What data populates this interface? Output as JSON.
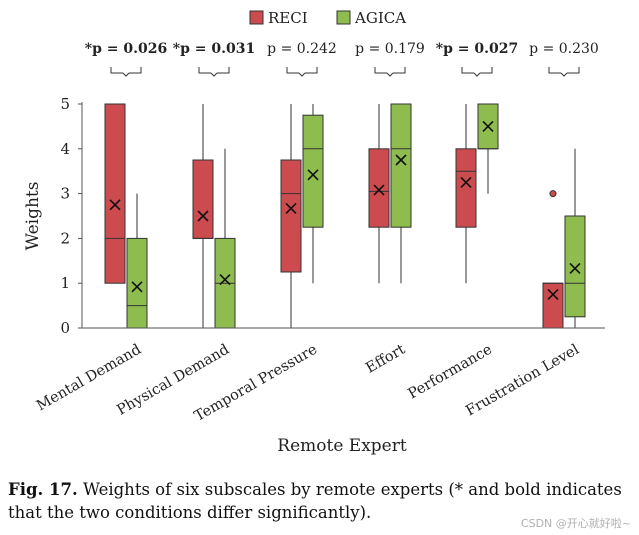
{
  "chart_data": {
    "type": "box",
    "ylabel": "Weights",
    "xlabel": "Remote Expert",
    "ylim": [
      0,
      5
    ],
    "yticks": [
      0,
      1,
      2,
      3,
      4,
      5
    ],
    "legend": {
      "placement": "top",
      "entries": [
        "RECI",
        "AGICA"
      ]
    },
    "colors": {
      "RECI": "#cc4b4f",
      "AGICA": "#8fbc4f",
      "outline": "#333333"
    },
    "categories": [
      "Mental Demand",
      "Physical Demand",
      "Temporal Pressure",
      "Effort",
      "Performance",
      "Frustration Level"
    ],
    "p_values": [
      {
        "text": "*p = 0.026",
        "significant": true
      },
      {
        "text": "*p = 0.031",
        "significant": true
      },
      {
        "text": "p = 0.242",
        "significant": false
      },
      {
        "text": "p = 0.179",
        "significant": false
      },
      {
        "text": "*p = 0.027",
        "significant": true
      },
      {
        "text": "p = 0.230",
        "significant": false
      }
    ],
    "series": [
      {
        "name": "RECI",
        "boxes": [
          {
            "min": 1,
            "q1": 1,
            "median": 2,
            "q3": 5,
            "max": 5,
            "mean": 2.75,
            "outliers": []
          },
          {
            "min": 0,
            "q1": 2,
            "median": 2,
            "q3": 3.75,
            "max": 5,
            "mean": 2.5,
            "outliers": []
          },
          {
            "min": 0,
            "q1": 1.25,
            "median": 3,
            "q3": 3.75,
            "max": 5,
            "mean": 2.67,
            "outliers": []
          },
          {
            "min": 1,
            "q1": 2.25,
            "median": 3.05,
            "q3": 4,
            "max": 5,
            "mean": 3.08,
            "outliers": []
          },
          {
            "min": 1,
            "q1": 2.25,
            "median": 3.5,
            "q3": 4,
            "max": 5,
            "mean": 3.25,
            "outliers": []
          },
          {
            "min": 0,
            "q1": 0,
            "median": 1,
            "q3": 1,
            "max": 1,
            "mean": 0.75,
            "outliers": [
              3
            ]
          }
        ]
      },
      {
        "name": "AGICA",
        "boxes": [
          {
            "min": 0,
            "q1": 0,
            "median": 0.5,
            "q3": 2,
            "max": 3,
            "mean": 0.92,
            "outliers": []
          },
          {
            "min": 0,
            "q1": 0,
            "median": 1,
            "q3": 2,
            "max": 4,
            "mean": 1.08,
            "outliers": []
          },
          {
            "min": 1,
            "q1": 2.25,
            "median": 4,
            "q3": 4.75,
            "max": 5,
            "mean": 3.42,
            "outliers": []
          },
          {
            "min": 1,
            "q1": 2.25,
            "median": 4,
            "q3": 5,
            "max": 5,
            "mean": 3.75,
            "outliers": []
          },
          {
            "min": 3,
            "q1": 4,
            "median": 4,
            "q3": 5,
            "max": 5,
            "mean": 4.5,
            "outliers": []
          },
          {
            "min": 0,
            "q1": 0.25,
            "median": 1,
            "q3": 2.5,
            "max": 4,
            "mean": 1.33,
            "outliers": []
          }
        ]
      }
    ]
  },
  "caption": {
    "label": "Fig. 17.",
    "text": "Weights of six subscales by remote experts (* and bold indicates that the two conditions differ significantly)."
  },
  "watermark": "CSDN @开心就好啦~"
}
